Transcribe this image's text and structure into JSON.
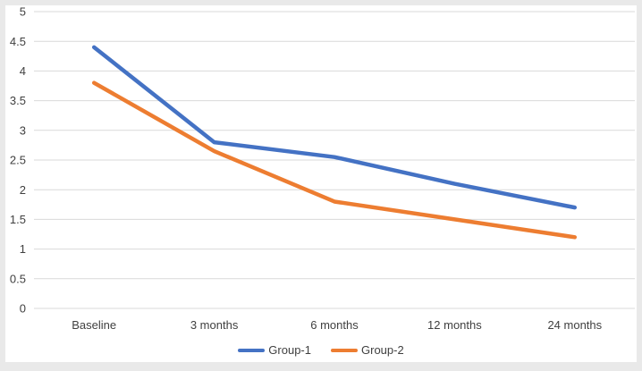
{
  "frame": {
    "background_color": "#e9e9e9",
    "panel_color": "#ffffff"
  },
  "chart_data": {
    "type": "line",
    "title": "",
    "xlabel": "",
    "ylabel": "",
    "categories": [
      "Baseline",
      "3 months",
      "6 months",
      "12 months",
      "24 months"
    ],
    "series": [
      {
        "name": "Group-1",
        "color": "#4472C4",
        "values": [
          4.4,
          2.8,
          2.55,
          2.1,
          1.7
        ]
      },
      {
        "name": "Group-2",
        "color": "#ED7D31",
        "values": [
          3.8,
          2.65,
          1.8,
          1.5,
          1.2
        ]
      }
    ],
    "ylim": [
      0,
      5
    ],
    "ytick_step": 0.5,
    "ytick_labels": [
      "0",
      "0.5",
      "1",
      "1.5",
      "2",
      "2.5",
      "3",
      "3.5",
      "4",
      "4.5",
      "5"
    ],
    "grid": "horizontal",
    "gridline_color": "#d9d9d9",
    "axis_text_color": "#404040",
    "line_width": 4.5,
    "legend_position": "bottom",
    "legend": [
      "Group-1",
      "Group-2"
    ]
  }
}
